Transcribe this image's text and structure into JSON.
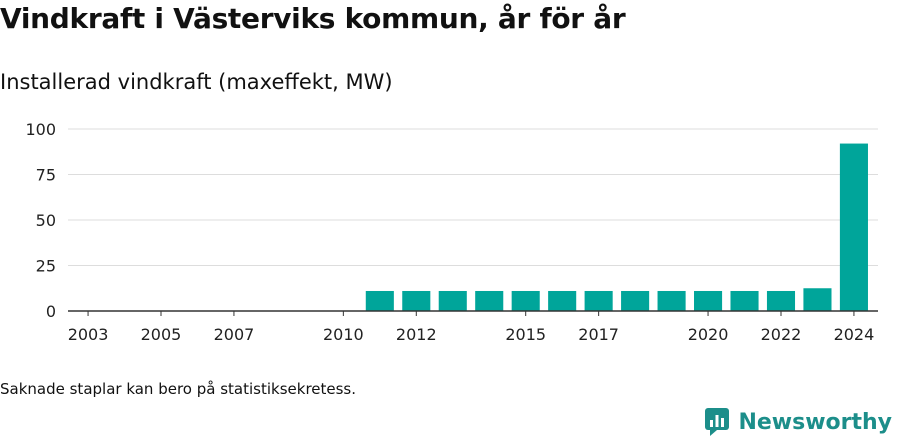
{
  "header": {
    "title": "Vindkraft i Västerviks kommun, år för år",
    "subtitle": "Installerad vindkraft (maxeffekt, MW)"
  },
  "footer": {
    "note": "Saknade staplar kan bero på statistiksekretess.",
    "brand": "Newsworthy",
    "brand_icon": "newsworthy-logo-icon"
  },
  "colors": {
    "bar": "#00a59a",
    "grid": "#dddddd",
    "axis": "#333333",
    "brand": "#1c8e8a"
  },
  "chart_data": {
    "type": "bar",
    "categories": [
      "2003",
      "2004",
      "2005",
      "2006",
      "2007",
      "2008",
      "2009",
      "2010",
      "2011",
      "2012",
      "2013",
      "2014",
      "2015",
      "2016",
      "2017",
      "2018",
      "2019",
      "2020",
      "2021",
      "2022",
      "2023",
      "2024"
    ],
    "values": [
      null,
      null,
      null,
      null,
      null,
      null,
      null,
      null,
      11,
      11,
      11,
      11,
      11,
      11,
      11,
      11,
      11,
      11,
      11,
      11,
      12.5,
      92
    ],
    "tick_labels": [
      "2003",
      "2005",
      "2007",
      "2010",
      "2012",
      "2015",
      "2017",
      "2020",
      "2022",
      "2024"
    ],
    "yticks": [
      0,
      25,
      50,
      75,
      100
    ],
    "ylim": [
      0,
      100
    ],
    "grid": true,
    "legend": "none"
  }
}
